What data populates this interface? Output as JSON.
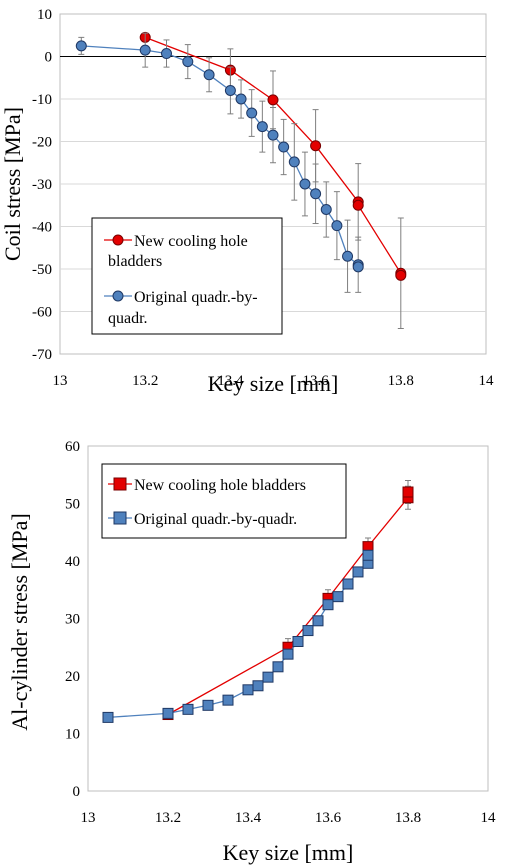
{
  "chart_data": [
    {
      "type": "scatter",
      "xlabel": "Key size [mm]",
      "ylabel": "Coil stress [MPa]",
      "xlim": [
        13,
        14
      ],
      "ylim": [
        -70,
        10
      ],
      "xticks": [
        "13",
        "13.2",
        "13.4",
        "13.6",
        "13.8",
        "14"
      ],
      "yticks": [
        "10",
        "0",
        "-10",
        "-20",
        "-30",
        "-40",
        "-50",
        "-60",
        "-70"
      ],
      "grid": "horizontal",
      "zero_line": true,
      "legend_position": "bottom-left",
      "series": [
        {
          "name": "New cooling hole bladders",
          "color": "#e30000",
          "edge_color": "#7a0000",
          "marker": "circle",
          "points": [
            {
              "x": 13.2,
              "y": 4.5,
              "err": 0
            },
            {
              "x": 13.4,
              "y": -3.2,
              "err": 5.0
            },
            {
              "x": 13.5,
              "y": -10.2,
              "err": 6.8
            },
            {
              "x": 13.6,
              "y": -21.0,
              "err": 8.5
            },
            {
              "x": 13.7,
              "y": -34.2,
              "err": 9.0
            },
            {
              "x": 13.7,
              "y": -35.0,
              "err": 0
            },
            {
              "x": 13.8,
              "y": -51.0,
              "err": 13.0
            },
            {
              "x": 13.8,
              "y": -51.5,
              "err": 0
            }
          ]
        },
        {
          "name": "Original quadr.-by-quadr.",
          "color": "#4f81bd",
          "edge_color": "#1f3864",
          "marker": "circle",
          "points": [
            {
              "x": 13.05,
              "y": 2.5,
              "err": 2.0
            },
            {
              "x": 13.2,
              "y": 1.5,
              "err": 4.0
            },
            {
              "x": 13.25,
              "y": 0.7,
              "err": 3.2
            },
            {
              "x": 13.3,
              "y": -1.2,
              "err": 4.0
            },
            {
              "x": 13.35,
              "y": -4.3,
              "err": 4.0
            },
            {
              "x": 13.4,
              "y": -8.0,
              "err": 5.5
            },
            {
              "x": 13.425,
              "y": -10.0,
              "err": 4.5
            },
            {
              "x": 13.45,
              "y": -13.3,
              "err": 5.5
            },
            {
              "x": 13.475,
              "y": -16.5,
              "err": 6.0
            },
            {
              "x": 13.5,
              "y": -18.5,
              "err": 6.5
            },
            {
              "x": 13.525,
              "y": -21.3,
              "err": 6.5
            },
            {
              "x": 13.55,
              "y": -24.8,
              "err": 9.0
            },
            {
              "x": 13.575,
              "y": -30.0,
              "err": 7.5
            },
            {
              "x": 13.6,
              "y": -32.3,
              "err": 7.0
            },
            {
              "x": 13.625,
              "y": -36.0,
              "err": 6.5
            },
            {
              "x": 13.65,
              "y": -39.8,
              "err": 8.0
            },
            {
              "x": 13.675,
              "y": -47.0,
              "err": 8.5
            },
            {
              "x": 13.7,
              "y": -49.0,
              "err": 6.5
            },
            {
              "x": 13.7,
              "y": -49.5,
              "err": 0
            }
          ]
        }
      ]
    },
    {
      "type": "scatter",
      "xlabel": "Key size [mm]",
      "ylabel": "Al-cylinder stress [MPa]",
      "xlim": [
        13,
        14
      ],
      "ylim": [
        0,
        60
      ],
      "xticks": [
        "13",
        "13.2",
        "13.4",
        "13.6",
        "13.8",
        "14"
      ],
      "yticks": [
        "60",
        "50",
        "40",
        "30",
        "20",
        "10",
        "0"
      ],
      "grid": "none",
      "zero_line": false,
      "legend_position": "top-left",
      "series": [
        {
          "name": "New cooling hole bladders",
          "color": "#e30000",
          "edge_color": "#7a0000",
          "marker": "square",
          "points": [
            {
              "x": 13.2,
              "y": 13.3,
              "err": 0
            },
            {
              "x": 13.5,
              "y": 25.0,
              "err": 1.5
            },
            {
              "x": 13.6,
              "y": 33.5,
              "err": 1.5
            },
            {
              "x": 13.7,
              "y": 42.5,
              "err": 1.5
            },
            {
              "x": 13.8,
              "y": 51.0,
              "err": 2.0
            },
            {
              "x": 13.8,
              "y": 52.0,
              "err": 2.0
            }
          ]
        },
        {
          "name": "Original quadr.-by-quadr.",
          "color": "#4f81bd",
          "edge_color": "#1f3864",
          "marker": "square",
          "points": [
            {
              "x": 13.05,
              "y": 12.8,
              "err": 0
            },
            {
              "x": 13.2,
              "y": 13.5,
              "err": 0
            },
            {
              "x": 13.25,
              "y": 14.2,
              "err": 0
            },
            {
              "x": 13.3,
              "y": 14.9,
              "err": 0
            },
            {
              "x": 13.35,
              "y": 15.8,
              "err": 0
            },
            {
              "x": 13.4,
              "y": 17.6,
              "err": 0
            },
            {
              "x": 13.425,
              "y": 18.3,
              "err": 0
            },
            {
              "x": 13.45,
              "y": 19.8,
              "err": 0
            },
            {
              "x": 13.475,
              "y": 21.6,
              "err": 0
            },
            {
              "x": 13.5,
              "y": 23.8,
              "err": 0
            },
            {
              "x": 13.525,
              "y": 26.0,
              "err": 0
            },
            {
              "x": 13.55,
              "y": 27.9,
              "err": 0
            },
            {
              "x": 13.575,
              "y": 29.6,
              "err": 0
            },
            {
              "x": 13.6,
              "y": 32.4,
              "err": 0
            },
            {
              "x": 13.625,
              "y": 33.8,
              "err": 0
            },
            {
              "x": 13.65,
              "y": 36.0,
              "err": 0
            },
            {
              "x": 13.675,
              "y": 38.1,
              "err": 0
            },
            {
              "x": 13.7,
              "y": 39.6,
              "err": 0
            },
            {
              "x": 13.7,
              "y": 41.0,
              "err": 0
            }
          ]
        }
      ]
    }
  ]
}
